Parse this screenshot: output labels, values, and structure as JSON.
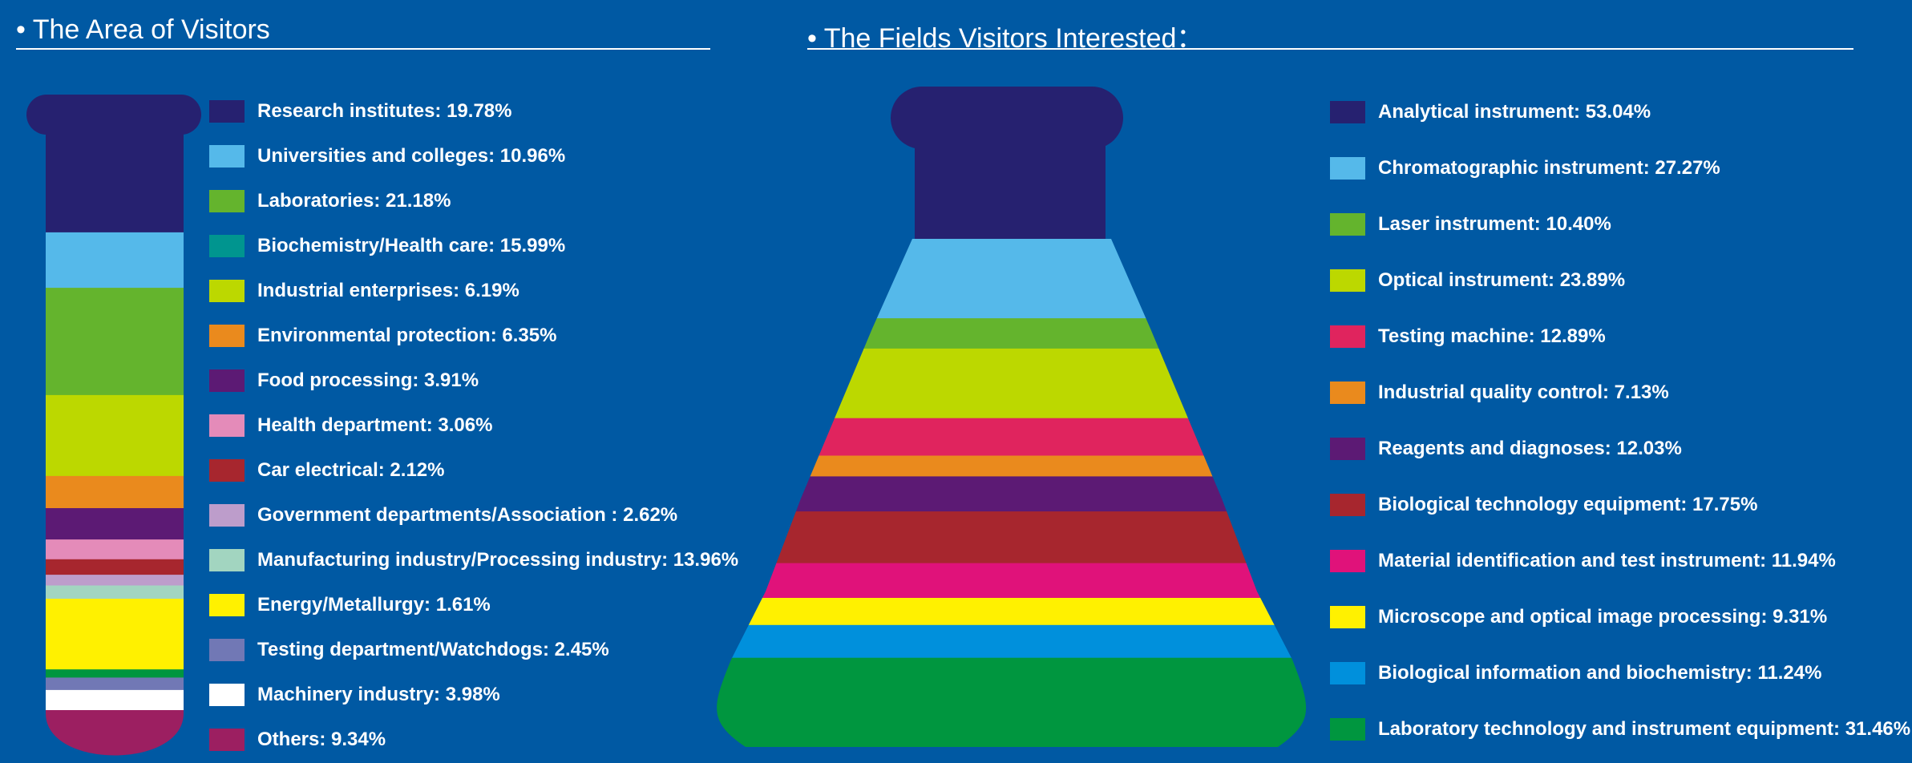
{
  "titles": {
    "left": "• The Area of Visitors",
    "right": "• The Fields Visitors Interested："
  },
  "chart_data": [
    {
      "type": "bar",
      "style": "stacked test-tube infographic",
      "title": "The Area of Visitors",
      "legend_placement": "right",
      "unit": "%",
      "categories": [
        {
          "label": "Research institutes",
          "value": 19.78,
          "color": "#262170"
        },
        {
          "label": "Universities and colleges",
          "value": 10.96,
          "color": "#55b9ea"
        },
        {
          "label": "Laboratories",
          "value": 21.18,
          "color": "#64b42d"
        },
        {
          "label": "Biochemistry/Health care",
          "value": 15.99,
          "color": "#00958f"
        },
        {
          "label": "Industrial enterprises",
          "value": 6.19,
          "color": "#bcd800"
        },
        {
          "label": "Environmental protection",
          "value": 6.35,
          "color": "#ea8a1d"
        },
        {
          "label": "Food processing",
          "value": 3.91,
          "color": "#5c1a74"
        },
        {
          "label": "Health department",
          "value": 3.06,
          "color": "#e48bb9"
        },
        {
          "label": "Car electrical",
          "value": 2.12,
          "color": "#a7262e"
        },
        {
          "label": "Government departments/Association ",
          "value": 2.62,
          "color": "#bd9dcb"
        },
        {
          "label": "Manufacturing industry/Processing industry",
          "value": 13.96,
          "color": "#a2d5c0"
        },
        {
          "label": "Energy/Metallurgy",
          "value": 1.61,
          "color": "#fff100"
        },
        {
          "label": "Testing department/Watchdogs",
          "value": 2.45,
          "color": "#7178b5"
        },
        {
          "label": "Machinery industry",
          "value": 3.98,
          "color": "#ffffff"
        },
        {
          "label": "Others",
          "value": 9.34,
          "color": "#9c1f61"
        }
      ],
      "tube_bands": [
        {
          "color": "#262170",
          "share": 19.78
        },
        {
          "color": "#55b9ea",
          "share": 10.96
        },
        {
          "color": "#64b42d",
          "share": 21.18
        },
        {
          "color": "#bcd800",
          "share": 15.99
        },
        {
          "color": "#ea8a1d",
          "share": 6.35
        },
        {
          "color": "#5c1a74",
          "share": 6.19
        },
        {
          "color": "#e48bb9",
          "share": 3.91
        },
        {
          "color": "#a7262e",
          "share": 3.06
        },
        {
          "color": "#bd9dcb",
          "share": 2.12
        },
        {
          "color": "#a2d5c0",
          "share": 2.62
        },
        {
          "color": "#fff100",
          "share": 13.96
        },
        {
          "color": "#00963f",
          "share": 1.61
        },
        {
          "color": "#7178b5",
          "share": 2.45
        },
        {
          "color": "#ffffff",
          "share": 3.98
        },
        {
          "color": "#9c1f61",
          "share": 9.34
        }
      ]
    },
    {
      "type": "bar",
      "style": "stacked flask infographic",
      "title": "The Fields Visitors Interested",
      "legend_placement": "right",
      "unit": "%",
      "categories": [
        {
          "label": "Analytical instrument",
          "value": 53.04,
          "color": "#262170"
        },
        {
          "label": "Chromatographic instrument",
          "value": 27.27,
          "color": "#55b9ea"
        },
        {
          "label": "Laser instrument",
          "value": 10.4,
          "color": "#64b42d"
        },
        {
          "label": "Optical instrument",
          "value": 23.89,
          "color": "#bcd800"
        },
        {
          "label": "Testing machine",
          "value": 12.89,
          "color": "#e0245e"
        },
        {
          "label": "Industrial quality control",
          "value": 7.13,
          "color": "#ea8a1d"
        },
        {
          "label": "Reagents and diagnoses",
          "value": 12.03,
          "color": "#5c1a74"
        },
        {
          "label": "Biological technology equipment",
          "value": 17.75,
          "color": "#a7262e"
        },
        {
          "label": "Material identification and test instrument",
          "value": 11.94,
          "color": "#e0127a"
        },
        {
          "label": "Microscope and optical image processing",
          "value": 9.31,
          "color": "#fff100"
        },
        {
          "label": "Biological information and biochemistry",
          "value": 11.24,
          "color": "#0090dc"
        },
        {
          "label": "Laboratory technology and instrument equipment",
          "value": 31.46,
          "color": "#00963f"
        }
      ]
    }
  ]
}
